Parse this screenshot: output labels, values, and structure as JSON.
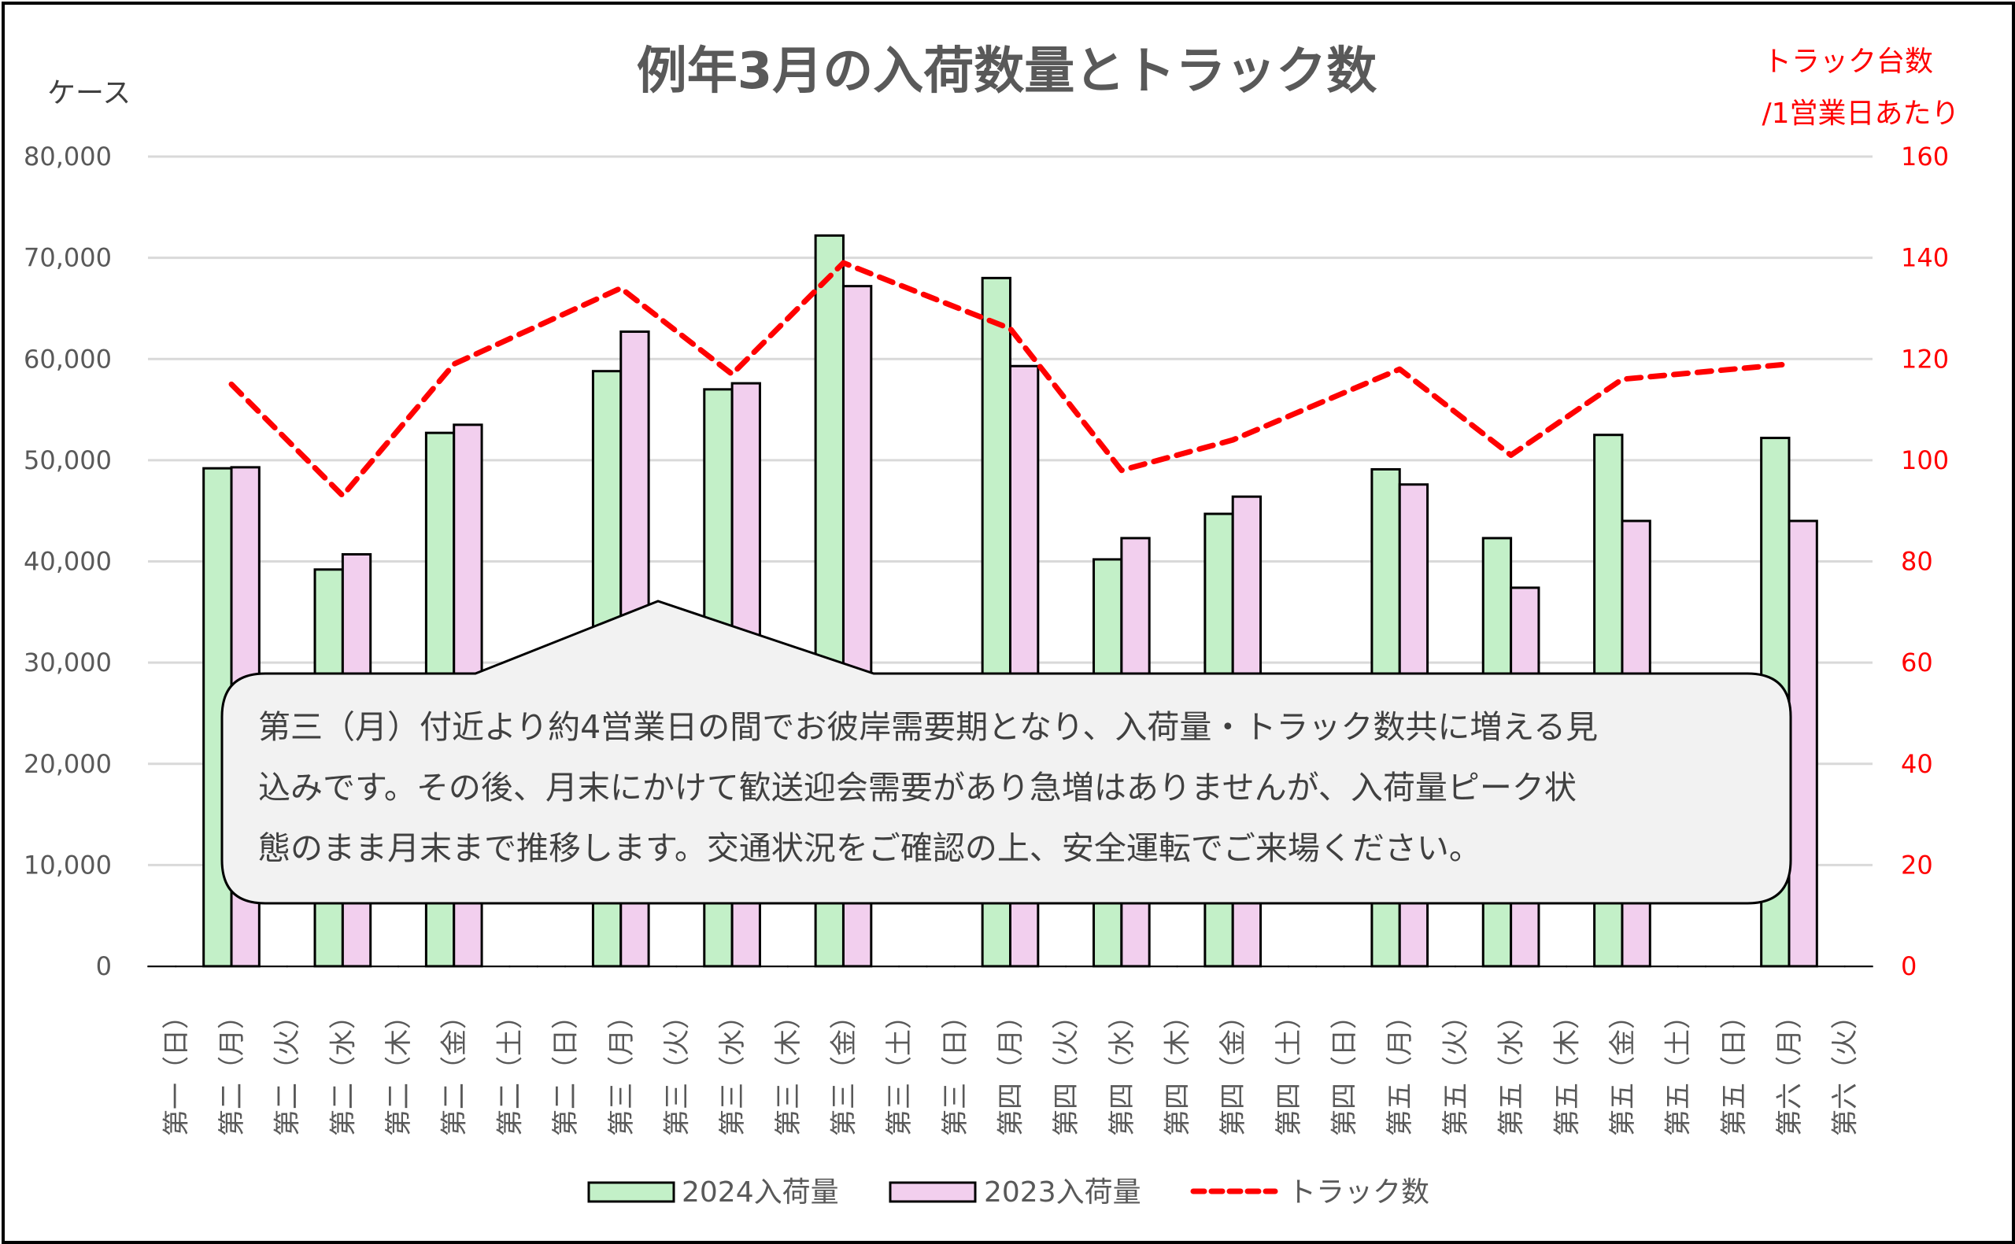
{
  "chart_data": {
    "type": "bar",
    "title": "例年3月の入荷数量とトラック数",
    "ylabel": "ケース",
    "y2label_line1": "トラック台数",
    "y2label_line2": "/1営業日あたり",
    "ylim": [
      0,
      80000
    ],
    "y2lim": [
      0,
      160
    ],
    "yticks": [
      "0",
      "10,000",
      "20,000",
      "30,000",
      "40,000",
      "50,000",
      "60,000",
      "70,000",
      "80,000"
    ],
    "y2ticks": [
      "0",
      "20",
      "40",
      "60",
      "80",
      "100",
      "120",
      "140",
      "160"
    ],
    "grid": true,
    "legend_position": "bottom",
    "categories": [
      "第一（日）",
      "第二（月）",
      "第二（火）",
      "第二（水）",
      "第二（木）",
      "第二（金）",
      "第二（土）",
      "第二（日）",
      "第三（月）",
      "第三（火）",
      "第三（水）",
      "第三（木）",
      "第三（金）",
      "第三（土）",
      "第三（日）",
      "第四（月）",
      "第四（火）",
      "第四（水）",
      "第四（木）",
      "第四（金）",
      "第四（土）",
      "第四（日）",
      "第五（月）",
      "第五（火）",
      "第五（水）",
      "第五（木）",
      "第五（金）",
      "第五（土）",
      "第五（日）",
      "第六（月）",
      "第六（火）"
    ],
    "series": [
      {
        "name": "2024入荷量",
        "type": "bar",
        "axis": "left",
        "color": "#C3F0C8",
        "values": [
          0,
          49200,
          0,
          39200,
          0,
          52700,
          0,
          0,
          58800,
          0,
          57000,
          0,
          72200,
          0,
          0,
          68000,
          0,
          40200,
          0,
          44700,
          0,
          0,
          49100,
          0,
          42300,
          0,
          52500,
          0,
          0,
          52200,
          0
        ]
      },
      {
        "name": "2023入荷量",
        "type": "bar",
        "axis": "left",
        "color": "#F2CFEE",
        "values": [
          0,
          49300,
          0,
          40700,
          0,
          53500,
          0,
          0,
          62700,
          0,
          57600,
          0,
          67200,
          0,
          0,
          59300,
          0,
          42300,
          0,
          46400,
          0,
          0,
          47600,
          0,
          37400,
          0,
          44000,
          0,
          0,
          44000,
          0
        ]
      },
      {
        "name": "トラック数",
        "type": "line",
        "axis": "right",
        "color": "#FF0000",
        "dashed": true,
        "values": [
          null,
          115,
          null,
          93,
          null,
          119,
          null,
          null,
          134,
          null,
          117,
          null,
          139,
          null,
          null,
          126,
          null,
          98,
          null,
          104,
          null,
          null,
          118,
          null,
          101,
          null,
          116,
          null,
          null,
          119,
          null
        ]
      }
    ],
    "annotation": {
      "lines": [
        "第三（月）付近より約4営業日の間でお彼岸需要期となり、入荷量・トラック数共に増える見",
        "込みです。その後、月末にかけて歓送迎会需要があり急増はありませんが、入荷量ピーク状",
        "態のまま月末まで推移します。交通状況をご確認の上、安全運転でご来場ください。"
      ]
    }
  }
}
